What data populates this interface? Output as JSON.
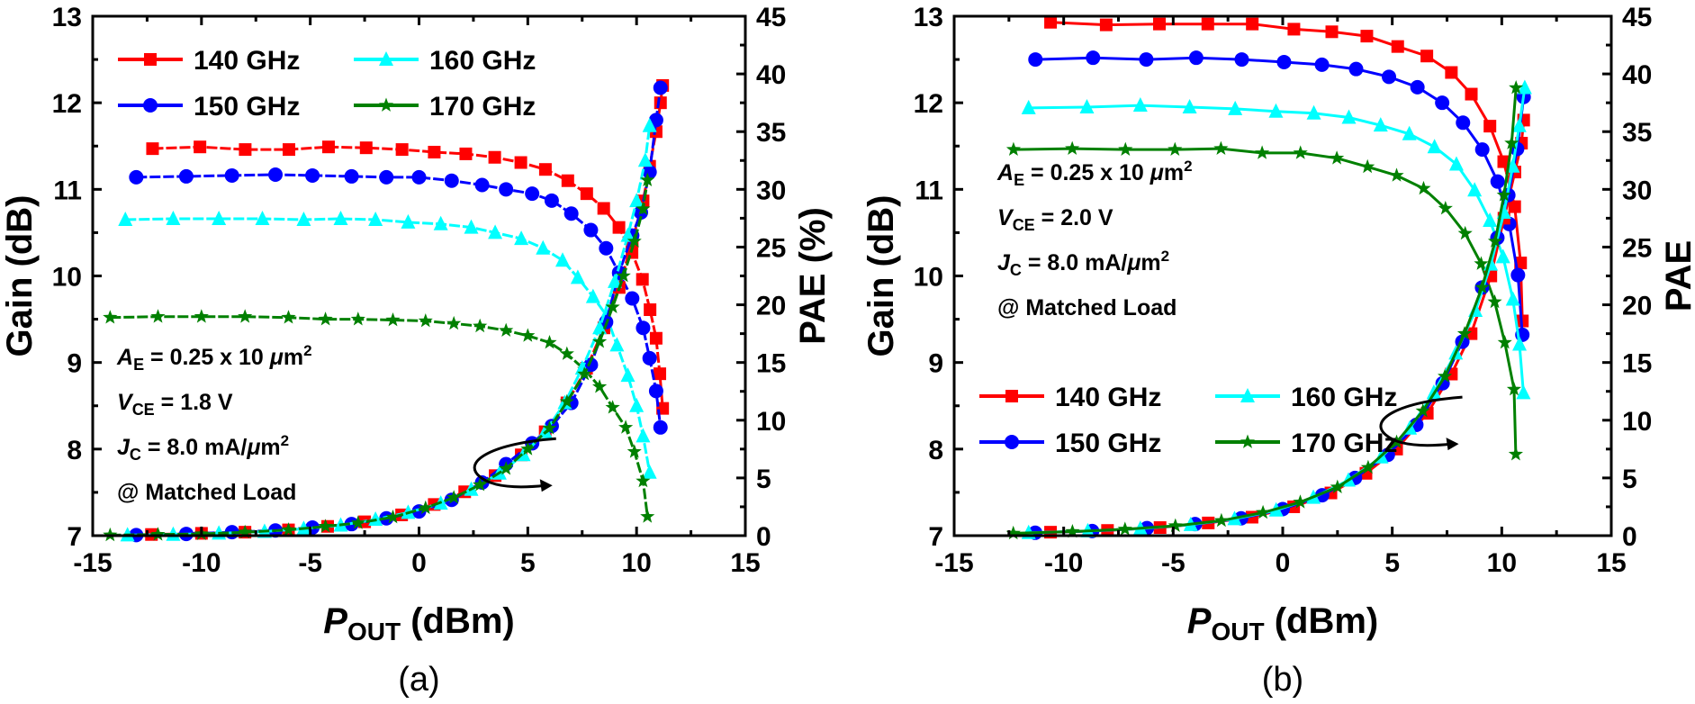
{
  "chart_data": [
    {
      "type": "line",
      "panel_label": "(a)",
      "xlabel": {
        "main": "P",
        "sub": "OUT",
        "rest": " (dBm)"
      },
      "ylabel_left": "Gain (dB)",
      "ylabel_right": "PAE (%)",
      "xlim": [
        -15,
        15
      ],
      "ylim_left": [
        7,
        13
      ],
      "ylim_right": [
        0,
        45
      ],
      "xticks": [
        "-15",
        "-10",
        "-5",
        "0",
        "5",
        "10",
        "15"
      ],
      "yticks_left": [
        "7",
        "8",
        "9",
        "10",
        "11",
        "12",
        "13"
      ],
      "yticks_right": [
        "0",
        "5",
        "10",
        "15",
        "20",
        "25",
        "30",
        "35",
        "40",
        "45"
      ],
      "grid": false,
      "legend_position": "top-left",
      "legend": [
        "140 GHz",
        "150 GHz",
        "160 GHz",
        "170 GHz"
      ],
      "annotation": [
        {
          "main": "A",
          "sub": "E",
          "rest": " = 0.25 x 10 ",
          "mu": "μ",
          "unit": "m",
          "sup": "2"
        },
        {
          "main": "V",
          "sub": "CE",
          "rest": " = 1.8 V"
        },
        {
          "main": "J",
          "sub": "C",
          "rest": " = 8.0 mA/",
          "mu": "μ",
          "unit": "m",
          "sup": "2"
        },
        {
          "main": "",
          "sub": "",
          "rest": "@ Matched Load"
        }
      ],
      "series": [
        {
          "name": "140 GHz",
          "axis": "left",
          "color": "#ff0000",
          "marker": "square",
          "x": [
            -12.25,
            -10.07,
            -7.99,
            -5.98,
            -4.16,
            -2.43,
            -0.78,
            0.7,
            2.15,
            3.48,
            4.68,
            5.81,
            6.84,
            7.71,
            8.49,
            9.19,
            9.79,
            10.27,
            10.62,
            10.9,
            11.07,
            11.2
          ],
          "y": [
            11.47,
            11.49,
            11.46,
            11.46,
            11.49,
            11.48,
            11.46,
            11.43,
            11.41,
            11.37,
            11.31,
            11.23,
            11.1,
            10.95,
            10.78,
            10.56,
            10.27,
            9.96,
            9.61,
            9.28,
            8.87,
            8.47
          ]
        },
        {
          "name": "150 GHz",
          "axis": "left",
          "color": "#0000ff",
          "marker": "circle",
          "x": [
            -13,
            -10.7,
            -8.6,
            -6.6,
            -4.9,
            -3.1,
            -1.5,
            0,
            1.5,
            2.9,
            4,
            5.2,
            6.1,
            7,
            7.9,
            8.6,
            9.2,
            9.8,
            10.3,
            10.6,
            10.9,
            11.1
          ],
          "y": [
            11.14,
            11.15,
            11.16,
            11.17,
            11.16,
            11.15,
            11.14,
            11.14,
            11.1,
            11.05,
            11.0,
            10.95,
            10.87,
            10.72,
            10.53,
            10.32,
            10.03,
            9.74,
            9.4,
            9.05,
            8.67,
            8.25
          ]
        },
        {
          "name": "160 GHz",
          "axis": "left",
          "color": "#00ffff",
          "marker": "triangle",
          "x": [
            -13.5,
            -11.3,
            -9.2,
            -7.2,
            -5.3,
            -3.6,
            -2,
            -0.5,
            1,
            2.4,
            3.5,
            4.7,
            5.7,
            6.6,
            7.3,
            8,
            8.6,
            9.1,
            9.6,
            10,
            10.3,
            10.6
          ],
          "y": [
            10.65,
            10.66,
            10.66,
            10.66,
            10.65,
            10.66,
            10.65,
            10.62,
            10.6,
            10.56,
            10.5,
            10.43,
            10.32,
            10.18,
            9.98,
            9.76,
            9.55,
            9.2,
            8.85,
            8.5,
            8.15,
            7.73
          ]
        },
        {
          "name": "170 GHz",
          "axis": "left",
          "color": "#008000",
          "marker": "star",
          "x": [
            -14.2,
            -12,
            -10,
            -8,
            -6,
            -4.3,
            -2.8,
            -1.2,
            0.3,
            1.6,
            2.8,
            4,
            5,
            6,
            6.8,
            7.6,
            8.3,
            8.9,
            9.5,
            9.9,
            10.3,
            10.5
          ],
          "y": [
            9.52,
            9.53,
            9.53,
            9.53,
            9.52,
            9.5,
            9.5,
            9.49,
            9.48,
            9.45,
            9.42,
            9.37,
            9.31,
            9.23,
            9.1,
            8.92,
            8.72,
            8.48,
            8.25,
            7.97,
            7.63,
            7.22
          ]
        },
        {
          "name": "140 GHz",
          "axis": "right",
          "color": "#ff0000",
          "marker": "square",
          "x": [
            -12.3,
            -10,
            -8,
            -6,
            -4.2,
            -2.5,
            -0.8,
            0.7,
            2.1,
            3.5,
            4.7,
            5.8,
            6.8,
            7.7,
            8.5,
            9.2,
            9.8,
            10.3,
            10.6,
            10.9,
            11.1,
            11.2
          ],
          "y": [
            0.1,
            0.2,
            0.3,
            0.5,
            0.8,
            1.2,
            1.8,
            2.7,
            3.8,
            5.2,
            7,
            9,
            11.5,
            14.5,
            18,
            21.5,
            25.5,
            29,
            32,
            35,
            37.5,
            39
          ]
        },
        {
          "name": "150 GHz",
          "axis": "right",
          "color": "#0000ff",
          "marker": "circle",
          "x": [
            -13,
            -10.7,
            -8.6,
            -6.6,
            -4.9,
            -3.1,
            -1.5,
            0,
            1.5,
            2.9,
            4,
            5.2,
            6.1,
            7,
            7.9,
            8.6,
            9.2,
            9.8,
            10.2,
            10.6,
            10.9,
            11.1
          ],
          "y": [
            0.05,
            0.15,
            0.3,
            0.45,
            0.7,
            1,
            1.5,
            2.1,
            3.1,
            4.6,
            6.2,
            8,
            9.5,
            11.5,
            14.8,
            18.5,
            22.8,
            26,
            28,
            31.5,
            36,
            38.8
          ]
        },
        {
          "name": "160 GHz",
          "axis": "right",
          "color": "#00ffff",
          "marker": "triangle",
          "x": [
            -13.4,
            -11.3,
            -9.2,
            -7.1,
            -5.3,
            -3.6,
            -2,
            -0.5,
            1,
            2.4,
            3.7,
            4.8,
            5.8,
            6.7,
            7.5,
            8.3,
            9,
            9.6,
            10,
            10.4,
            10.6
          ],
          "y": [
            0.05,
            0.1,
            0.2,
            0.35,
            0.6,
            0.9,
            1.4,
            2,
            2.8,
            4,
            5.4,
            7,
            9,
            11.5,
            14.5,
            18,
            22,
            26,
            29,
            32.5,
            35.5
          ]
        },
        {
          "name": "170 GHz",
          "axis": "right",
          "color": "#008000",
          "marker": "star",
          "x": [
            -14.2,
            -12,
            -10,
            -8,
            -6,
            -4.3,
            -2.8,
            -1.2,
            0.3,
            1.6,
            2.8,
            4,
            5,
            6,
            6.8,
            7.6,
            8.3,
            8.9,
            9.4,
            9.9,
            10.3,
            10.5
          ],
          "y": [
            0.05,
            0.1,
            0.15,
            0.3,
            0.5,
            0.8,
            1.1,
            1.6,
            2.4,
            3.3,
            4.4,
            5.8,
            7.5,
            9.3,
            11.6,
            14,
            16.8,
            19.8,
            22.5,
            25.5,
            28.3,
            30.8
          ]
        }
      ]
    },
    {
      "type": "line",
      "panel_label": "(b)",
      "xlabel": {
        "main": "P",
        "sub": "OUT",
        "rest": " (dBm)"
      },
      "ylabel_left": "Gain (dB)",
      "ylabel_right": "PAE",
      "xlim": [
        -15,
        15
      ],
      "ylim_left": [
        7,
        13
      ],
      "ylim_right": [
        0,
        45
      ],
      "xticks": [
        "-15",
        "-10",
        "-5",
        "0",
        "5",
        "10",
        "15"
      ],
      "yticks_left": [
        "7",
        "8",
        "9",
        "10",
        "11",
        "12",
        "13"
      ],
      "yticks_right": [
        "0",
        "5",
        "10",
        "15",
        "20",
        "25",
        "30",
        "35",
        "40",
        "45"
      ],
      "grid": false,
      "legend_position": "bottom-left",
      "legend": [
        "140 GHz",
        "150 GHz",
        "160 GHz",
        "170 GHz"
      ],
      "annotation": [
        {
          "main": "A",
          "sub": "E",
          "rest": " = 0.25 x 10 ",
          "mu": "μ",
          "unit": "m",
          "sup": "2"
        },
        {
          "main": "V",
          "sub": "CE",
          "rest": " = 2.0 V"
        },
        {
          "main": "J",
          "sub": "C",
          "rest": " = 8.0 mA/",
          "mu": "μ",
          "unit": "m",
          "sup": "2"
        },
        {
          "main": "",
          "sub": "",
          "rest": "@ Matched Load"
        }
      ],
      "series": [
        {
          "name": "140 GHz",
          "axis": "left",
          "color": "#ff0000",
          "marker": "square",
          "x": [
            -10.6,
            -8.06,
            -5.63,
            -3.42,
            -1.39,
            0.51,
            2.24,
            3.84,
            5.25,
            6.58,
            7.7,
            8.61,
            9.46,
            10.09,
            10.59,
            10.86,
            10.94
          ],
          "y": [
            12.93,
            12.9,
            12.91,
            12.91,
            12.91,
            12.85,
            12.82,
            12.77,
            12.65,
            12.54,
            12.35,
            12.1,
            11.73,
            11.32,
            10.8,
            10.15,
            9.48
          ]
        },
        {
          "name": "150 GHz",
          "axis": "left",
          "color": "#0000ff",
          "marker": "circle",
          "x": [
            -11.29,
            -8.66,
            -6.23,
            -3.95,
            -1.87,
            0.06,
            1.79,
            3.35,
            4.85,
            6.15,
            7.28,
            8.23,
            9.11,
            9.81,
            10.34,
            10.74,
            10.94
          ],
          "y": [
            12.5,
            12.52,
            12.5,
            12.52,
            12.5,
            12.47,
            12.44,
            12.39,
            12.3,
            12.18,
            12.0,
            11.77,
            11.46,
            11.09,
            10.6,
            10.01,
            9.32
          ]
        },
        {
          "name": "160 GHz",
          "axis": "left",
          "color": "#00ffff",
          "marker": "triangle",
          "x": [
            -11.6,
            -8.94,
            -6.5,
            -4.25,
            -2.17,
            -0.31,
            1.42,
            3.02,
            4.47,
            5.78,
            6.93,
            7.93,
            8.76,
            9.46,
            10.06,
            10.51,
            10.81,
            10.99
          ],
          "y": [
            11.94,
            11.95,
            11.97,
            11.95,
            11.93,
            11.9,
            11.88,
            11.83,
            11.74,
            11.64,
            11.49,
            11.29,
            10.99,
            10.64,
            10.22,
            9.73,
            9.21,
            8.65
          ]
        },
        {
          "name": "170 GHz",
          "axis": "left",
          "color": "#008000",
          "marker": "star",
          "x": [
            -12.29,
            -9.61,
            -7.18,
            -4.92,
            -2.82,
            -0.94,
            0.81,
            2.47,
            3.87,
            5.2,
            6.43,
            7.43,
            8.33,
            9.06,
            9.68,
            10.14,
            10.56,
            10.64
          ],
          "y": [
            11.46,
            11.47,
            11.46,
            11.46,
            11.47,
            11.42,
            11.42,
            11.36,
            11.26,
            11.16,
            11.01,
            10.78,
            10.49,
            10.14,
            9.7,
            9.23,
            8.69,
            7.94
          ]
        },
        {
          "name": "140 GHz",
          "axis": "right",
          "color": "#ff0000",
          "marker": "square",
          "x": [
            -10.6,
            -8,
            -5.6,
            -3.4,
            -1.4,
            0.5,
            2.2,
            3.8,
            5.2,
            6.6,
            7.7,
            8.6,
            9.5,
            10.1,
            10.6,
            10.9,
            11
          ],
          "y": [
            0.3,
            0.45,
            0.7,
            1.1,
            1.6,
            2.5,
            3.7,
            5.4,
            7.5,
            10.6,
            14,
            17.5,
            22.5,
            27.5,
            31.5,
            34,
            36
          ]
        },
        {
          "name": "150 GHz",
          "axis": "right",
          "color": "#0000ff",
          "marker": "circle",
          "x": [
            -11.3,
            -8.7,
            -6.2,
            -4,
            -1.9,
            0,
            1.8,
            3.3,
            4.8,
            6.1,
            7.3,
            8.2,
            9.1,
            9.8,
            10.3,
            10.7,
            11
          ],
          "y": [
            0.25,
            0.4,
            0.65,
            1,
            1.5,
            2.3,
            3.5,
            5,
            7,
            9.6,
            13.2,
            16.8,
            21.5,
            25.8,
            29.5,
            33.5,
            38
          ]
        },
        {
          "name": "160 GHz",
          "axis": "right",
          "color": "#00ffff",
          "marker": "triangle",
          "x": [
            -11.6,
            -8.9,
            -6.5,
            -4.2,
            -2.2,
            -0.3,
            1.4,
            3,
            4.5,
            5.8,
            6.9,
            7.9,
            8.8,
            9.5,
            10.1,
            10.5,
            10.8,
            11.05
          ],
          "y": [
            0.25,
            0.4,
            0.6,
            0.95,
            1.45,
            2.2,
            3.3,
            4.8,
            6.8,
            9.3,
            12.4,
            15.8,
            19.5,
            23.5,
            28,
            32,
            35.5,
            38.8
          ]
        },
        {
          "name": "170 GHz",
          "axis": "right",
          "color": "#008000",
          "marker": "star",
          "x": [
            -12.3,
            -9.6,
            -7.2,
            -4.9,
            -2.8,
            -0.9,
            0.8,
            2.5,
            3.9,
            5.2,
            6.4,
            7.4,
            8.3,
            9.1,
            9.7,
            10.1,
            10.45,
            10.65
          ],
          "y": [
            0.2,
            0.35,
            0.55,
            0.85,
            1.3,
            2,
            2.9,
            4.2,
            5.9,
            8.1,
            10.8,
            13.8,
            17.5,
            21.5,
            25.5,
            29.5,
            34,
            38.8
          ]
        }
      ]
    }
  ]
}
